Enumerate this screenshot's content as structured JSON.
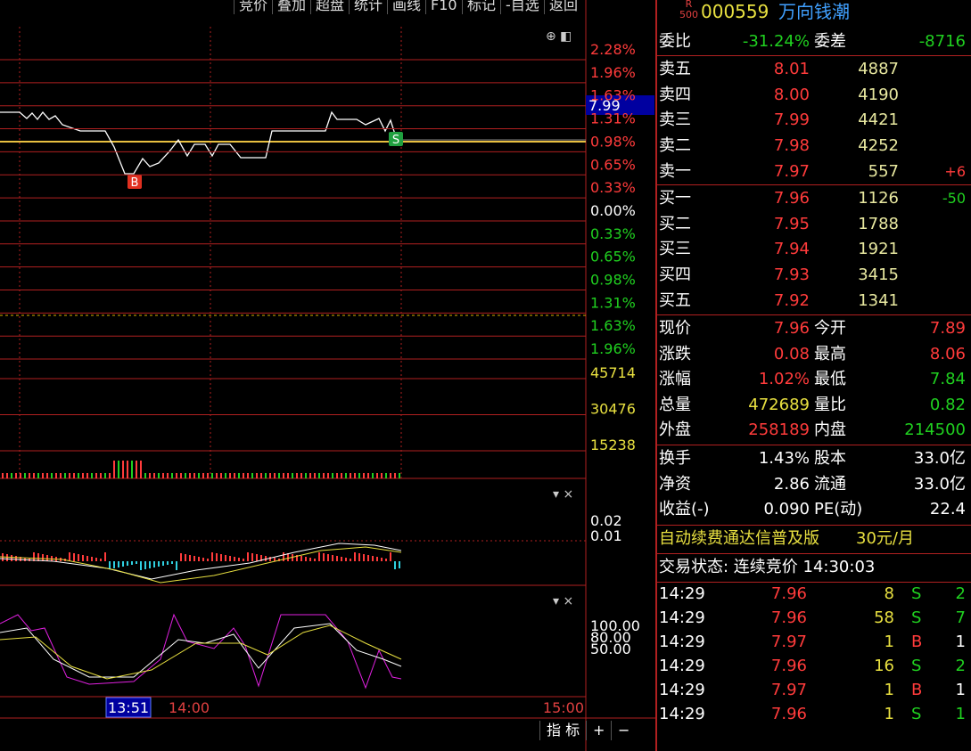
{
  "toolbar": [
    "竞价",
    "叠加",
    "超盘",
    "统计",
    "画线",
    "F10",
    "标记",
    "-自选",
    "返回"
  ],
  "stock": {
    "badge_top": "R",
    "badge_bottom": "500",
    "code": "000559",
    "name": "万向钱潮"
  },
  "ratio": {
    "label": "委比",
    "value": "-31.24%",
    "diff_label": "委差",
    "diff": "-8716"
  },
  "sell": [
    {
      "label": "卖五",
      "price": "8.01",
      "volume": "4887"
    },
    {
      "label": "卖四",
      "price": "8.00",
      "volume": "4190"
    },
    {
      "label": "卖三",
      "price": "7.99",
      "volume": "4421"
    },
    {
      "label": "卖二",
      "price": "7.98",
      "volume": "4252"
    },
    {
      "label": "卖一",
      "price": "7.97",
      "volume": "557",
      "change": "+6"
    }
  ],
  "buy": [
    {
      "label": "买一",
      "price": "7.96",
      "volume": "1126",
      "change": "-50"
    },
    {
      "label": "买二",
      "price": "7.95",
      "volume": "1788"
    },
    {
      "label": "买三",
      "price": "7.94",
      "volume": "1921"
    },
    {
      "label": "买四",
      "price": "7.93",
      "volume": "3415"
    },
    {
      "label": "买五",
      "price": "7.92",
      "volume": "1341"
    }
  ],
  "quote": [
    [
      "现价",
      "7.96",
      "今开",
      "7.89"
    ],
    [
      "涨跌",
      "0.08",
      "最高",
      "8.06"
    ],
    [
      "涨幅",
      "1.02%",
      "最低",
      "7.84"
    ],
    [
      "总量",
      "472689",
      "量比",
      "0.82"
    ],
    [
      "外盘",
      "258189",
      "内盘",
      "214500"
    ]
  ],
  "stats": [
    [
      "换手",
      "1.43%",
      "股本",
      "33.0亿"
    ],
    [
      "净资",
      "2.86",
      "流通",
      "33.0亿"
    ],
    [
      "收益(-)",
      "0.090",
      "PE(动)",
      "22.4"
    ]
  ],
  "promo": {
    "text": "自动续费通达信普及版",
    "price": "30元/月"
  },
  "status": "交易状态: 连续竞价 14:30:03",
  "trades": [
    [
      "14:29",
      "7.96",
      "8",
      "S",
      "2"
    ],
    [
      "14:29",
      "7.96",
      "58",
      "S",
      "7"
    ],
    [
      "14:29",
      "7.97",
      "1",
      "B",
      "1"
    ],
    [
      "14:29",
      "7.96",
      "16",
      "S",
      "2"
    ],
    [
      "14:29",
      "7.97",
      "1",
      "B",
      "1"
    ],
    [
      "14:29",
      "7.96",
      "1",
      "S",
      "1"
    ]
  ],
  "axis": {
    "up": [
      "2.28%",
      "1.96%",
      "1.63%",
      "1.31%",
      "0.98%",
      "0.65%",
      "0.33%"
    ],
    "zero": "0.00%",
    "down": [
      "0.33%",
      "0.65%",
      "0.98%",
      "1.31%",
      "1.63%",
      "1.96%"
    ],
    "volume": [
      "45714",
      "30476",
      "15238"
    ],
    "macd": [
      "0.02",
      "0.01"
    ],
    "kdj": [
      "100.00",
      "80.00",
      "50.00"
    ],
    "price_tag": "7.99"
  },
  "time_axis": {
    "cursor": "13:51",
    "mid": "14:00",
    "end": "15:00"
  },
  "markers": {
    "buy": "B",
    "sell": "S"
  },
  "bottom_buttons": [
    "指 标",
    "+",
    "−"
  ]
}
